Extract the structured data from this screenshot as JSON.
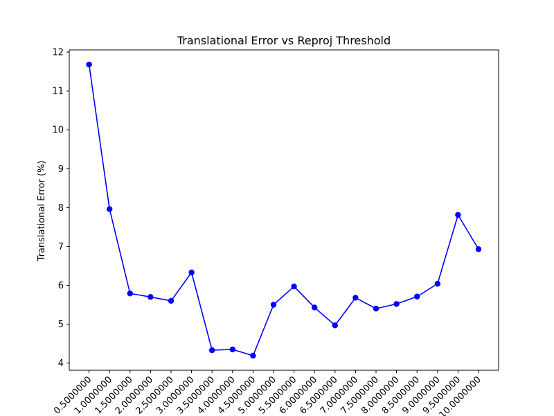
{
  "chart_data": {
    "type": "line",
    "title": "Translational Error vs Reproj Threshold",
    "xlabel": "",
    "ylabel": "Translational Error (%)",
    "categories": [
      "0.5000000",
      "1.0000000",
      "1.5000000",
      "2.0000000",
      "2.5000000",
      "3.0000000",
      "3.5000000",
      "4.0000000",
      "4.5000000",
      "5.0000000",
      "5.5000000",
      "6.0000000",
      "6.5000000",
      "7.0000000",
      "7.5000000",
      "8.0000000",
      "8.5000000",
      "9.0000000",
      "9.5000000",
      "10.0000000"
    ],
    "values": [
      11.68,
      7.96,
      5.79,
      5.7,
      5.6,
      6.33,
      4.33,
      4.35,
      4.19,
      5.5,
      5.97,
      5.43,
      4.97,
      5.68,
      5.4,
      5.52,
      5.71,
      6.04,
      7.81,
      6.93
    ],
    "yticks": [
      4,
      5,
      6,
      7,
      8,
      9,
      10,
      11,
      12
    ],
    "ylim": [
      3.815,
      12.055
    ],
    "grid": false,
    "color": "#0000ff"
  }
}
